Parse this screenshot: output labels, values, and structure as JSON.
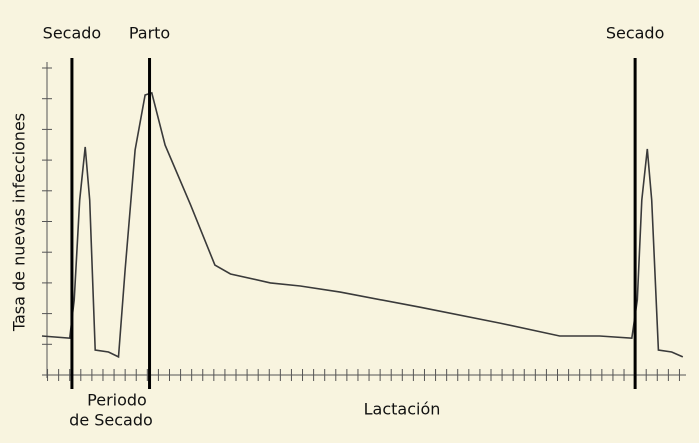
{
  "chart_data": {
    "type": "line",
    "ylabel": "Tasa de nuevas infecciones",
    "xlabel": "Lactación",
    "dry_period_label": [
      "Periodo",
      "de Secado"
    ],
    "markers": [
      {
        "label": "Secado",
        "x": 2.2
      },
      {
        "label": "Parto",
        "x": 9.2
      },
      {
        "label": "Secado",
        "x": 53.0
      }
    ],
    "xlim": [
      -0.5,
      57.5
    ],
    "xticks": [
      0,
      1,
      2,
      3,
      4,
      5,
      6,
      7,
      8,
      9,
      10,
      11,
      12,
      13,
      14,
      15,
      16,
      17,
      18,
      19,
      20,
      21,
      22,
      23,
      24,
      25,
      26,
      27,
      28,
      29,
      30,
      31,
      32,
      33,
      34,
      35,
      36,
      37,
      38,
      39,
      40,
      41,
      42,
      43,
      44,
      45,
      46,
      47,
      48,
      49,
      50,
      51,
      52,
      53,
      54,
      55,
      56,
      57
    ],
    "ylim": [
      0,
      10
    ],
    "yticks": [
      0,
      1,
      2,
      3,
      4,
      5,
      6,
      7,
      8,
      9,
      10
    ],
    "grid": false,
    "series": [
      {
        "color": "#3a3a3a",
        "x": [
          -0.5,
          2.0,
          2.4,
          2.9,
          3.4,
          3.8,
          4.3,
          5.5,
          6.4,
          7.0,
          7.9,
          8.8,
          9.4,
          10.6,
          12.9,
          15.1,
          16.5,
          20.1,
          22.8,
          26.4,
          33.6,
          40.8,
          46.2,
          49.8,
          52.7,
          53.2,
          53.6,
          54.1,
          54.5,
          55.1,
          56.3,
          57.3
        ],
        "values": [
          1.27,
          1.2,
          2.44,
          5.7,
          7.43,
          5.7,
          0.81,
          0.75,
          0.59,
          3.42,
          7.33,
          9.12,
          9.19,
          7.49,
          5.54,
          3.58,
          3.29,
          3.0,
          2.9,
          2.7,
          2.21,
          1.69,
          1.27,
          1.27,
          1.2,
          2.44,
          5.7,
          7.36,
          5.7,
          0.81,
          0.75,
          0.59
        ]
      }
    ]
  }
}
